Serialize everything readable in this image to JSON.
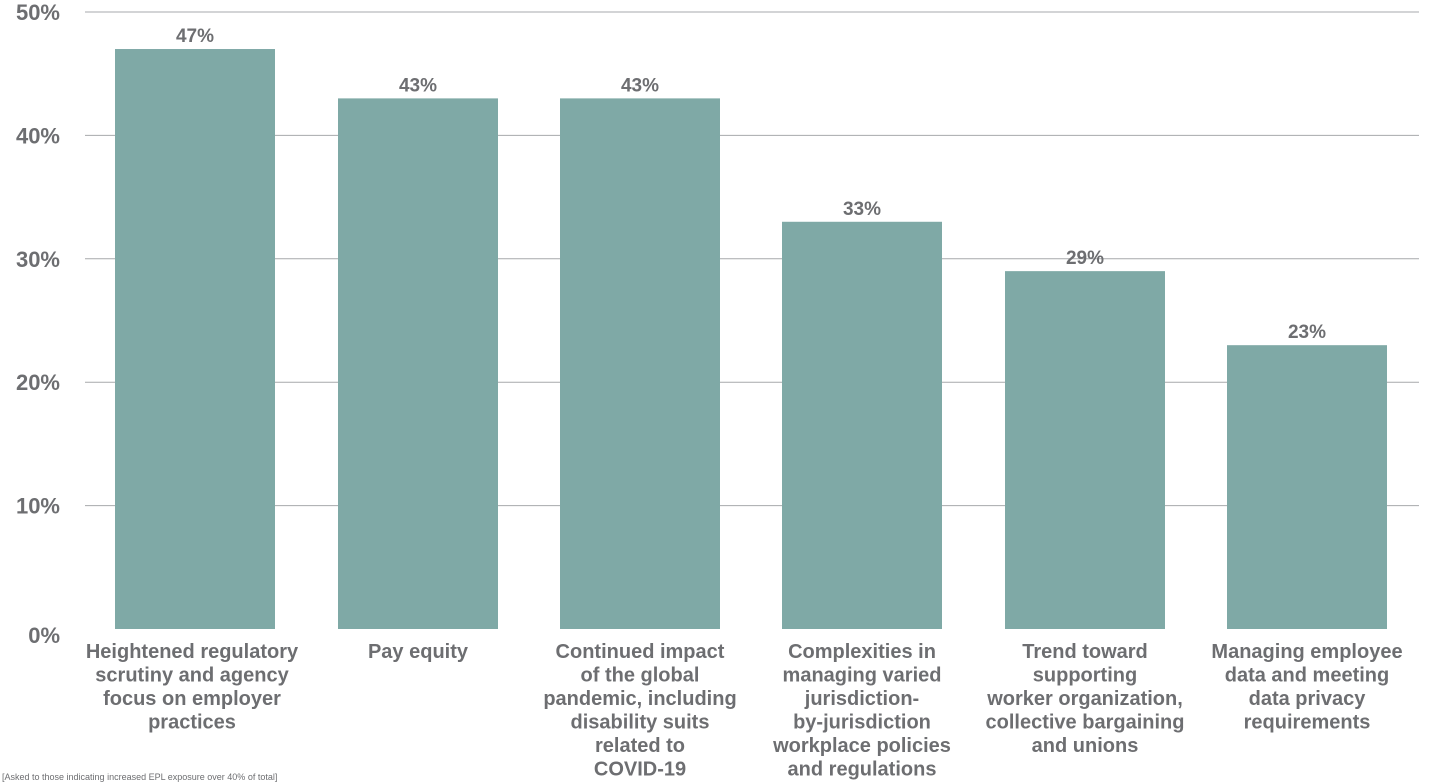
{
  "chart_data": {
    "type": "bar",
    "categories": [
      [
        "Heightened regulatory",
        "scrutiny and agency",
        "focus on employer",
        "practices"
      ],
      [
        "Pay equity"
      ],
      [
        "Continued impact",
        "of the global",
        "pandemic, including",
        "disability suits",
        "related to",
        "COVID-19"
      ],
      [
        "Complexities in",
        "managing varied",
        "jurisdiction-",
        "by-jurisdiction",
        "workplace policies",
        "and regulations"
      ],
      [
        "Trend toward",
        "supporting",
        "worker organization,",
        "collective bargaining",
        "and unions"
      ],
      [
        "Managing employee",
        "data and meeting",
        "data privacy",
        "requirements"
      ]
    ],
    "values": [
      47,
      43,
      43,
      33,
      29,
      23
    ],
    "value_labels": [
      "47%",
      "43%",
      "43%",
      "33%",
      "29%",
      "23%"
    ],
    "y_ticks": [
      0,
      10,
      20,
      30,
      40,
      50
    ],
    "y_tick_labels": [
      "0%",
      "10%",
      "20%",
      "30%",
      "40%",
      "50%"
    ],
    "ylim": [
      0,
      50
    ],
    "grid": true,
    "colors": {
      "bar": "#7fa9a6",
      "gridline": "#a7a9ac",
      "text": "#6d6e71"
    }
  },
  "footnote": "[Asked to those indicating increased EPL exposure over 40% of total]"
}
